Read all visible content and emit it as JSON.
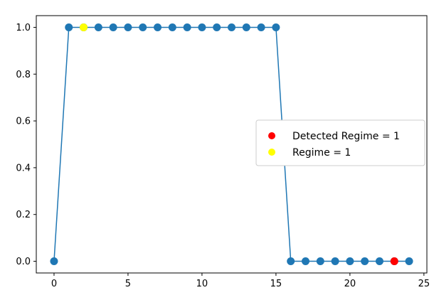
{
  "chart_data": {
    "type": "line",
    "title": "",
    "xlabel": "",
    "ylabel": "",
    "xlim": [
      -1.2,
      25.2
    ],
    "ylim": [
      -0.05,
      1.05
    ],
    "xticks": [
      0,
      5,
      10,
      15,
      20,
      25
    ],
    "yticks": [
      0.0,
      0.2,
      0.4,
      0.6,
      0.8,
      1.0
    ],
    "xtick_labels": [
      "0",
      "5",
      "10",
      "15",
      "20",
      "25"
    ],
    "ytick_labels": [
      "0.0",
      "0.2",
      "0.4",
      "0.6",
      "0.8",
      "1.0"
    ],
    "grid": false,
    "legend_position": "center-right",
    "series": [
      {
        "x": [
          0,
          1,
          2,
          3,
          4,
          5,
          6,
          7,
          8,
          9,
          10,
          11,
          12,
          13,
          14,
          15,
          16,
          17,
          18,
          19,
          20,
          21,
          22,
          23,
          24
        ],
        "values": [
          0,
          1,
          1,
          1,
          1,
          1,
          1,
          1,
          1,
          1,
          1,
          1,
          1,
          1,
          1,
          1,
          0,
          0,
          0,
          0,
          0,
          0,
          0,
          0,
          0
        ],
        "color": "#1f77b4",
        "marker": "circle"
      }
    ],
    "highlights": [
      {
        "name": "Detected Regime = 1",
        "x": 23,
        "y": 0,
        "color": "#ff0000"
      },
      {
        "name": "Regime = 1",
        "x": 2,
        "y": 1,
        "color": "#ffff00"
      }
    ]
  }
}
